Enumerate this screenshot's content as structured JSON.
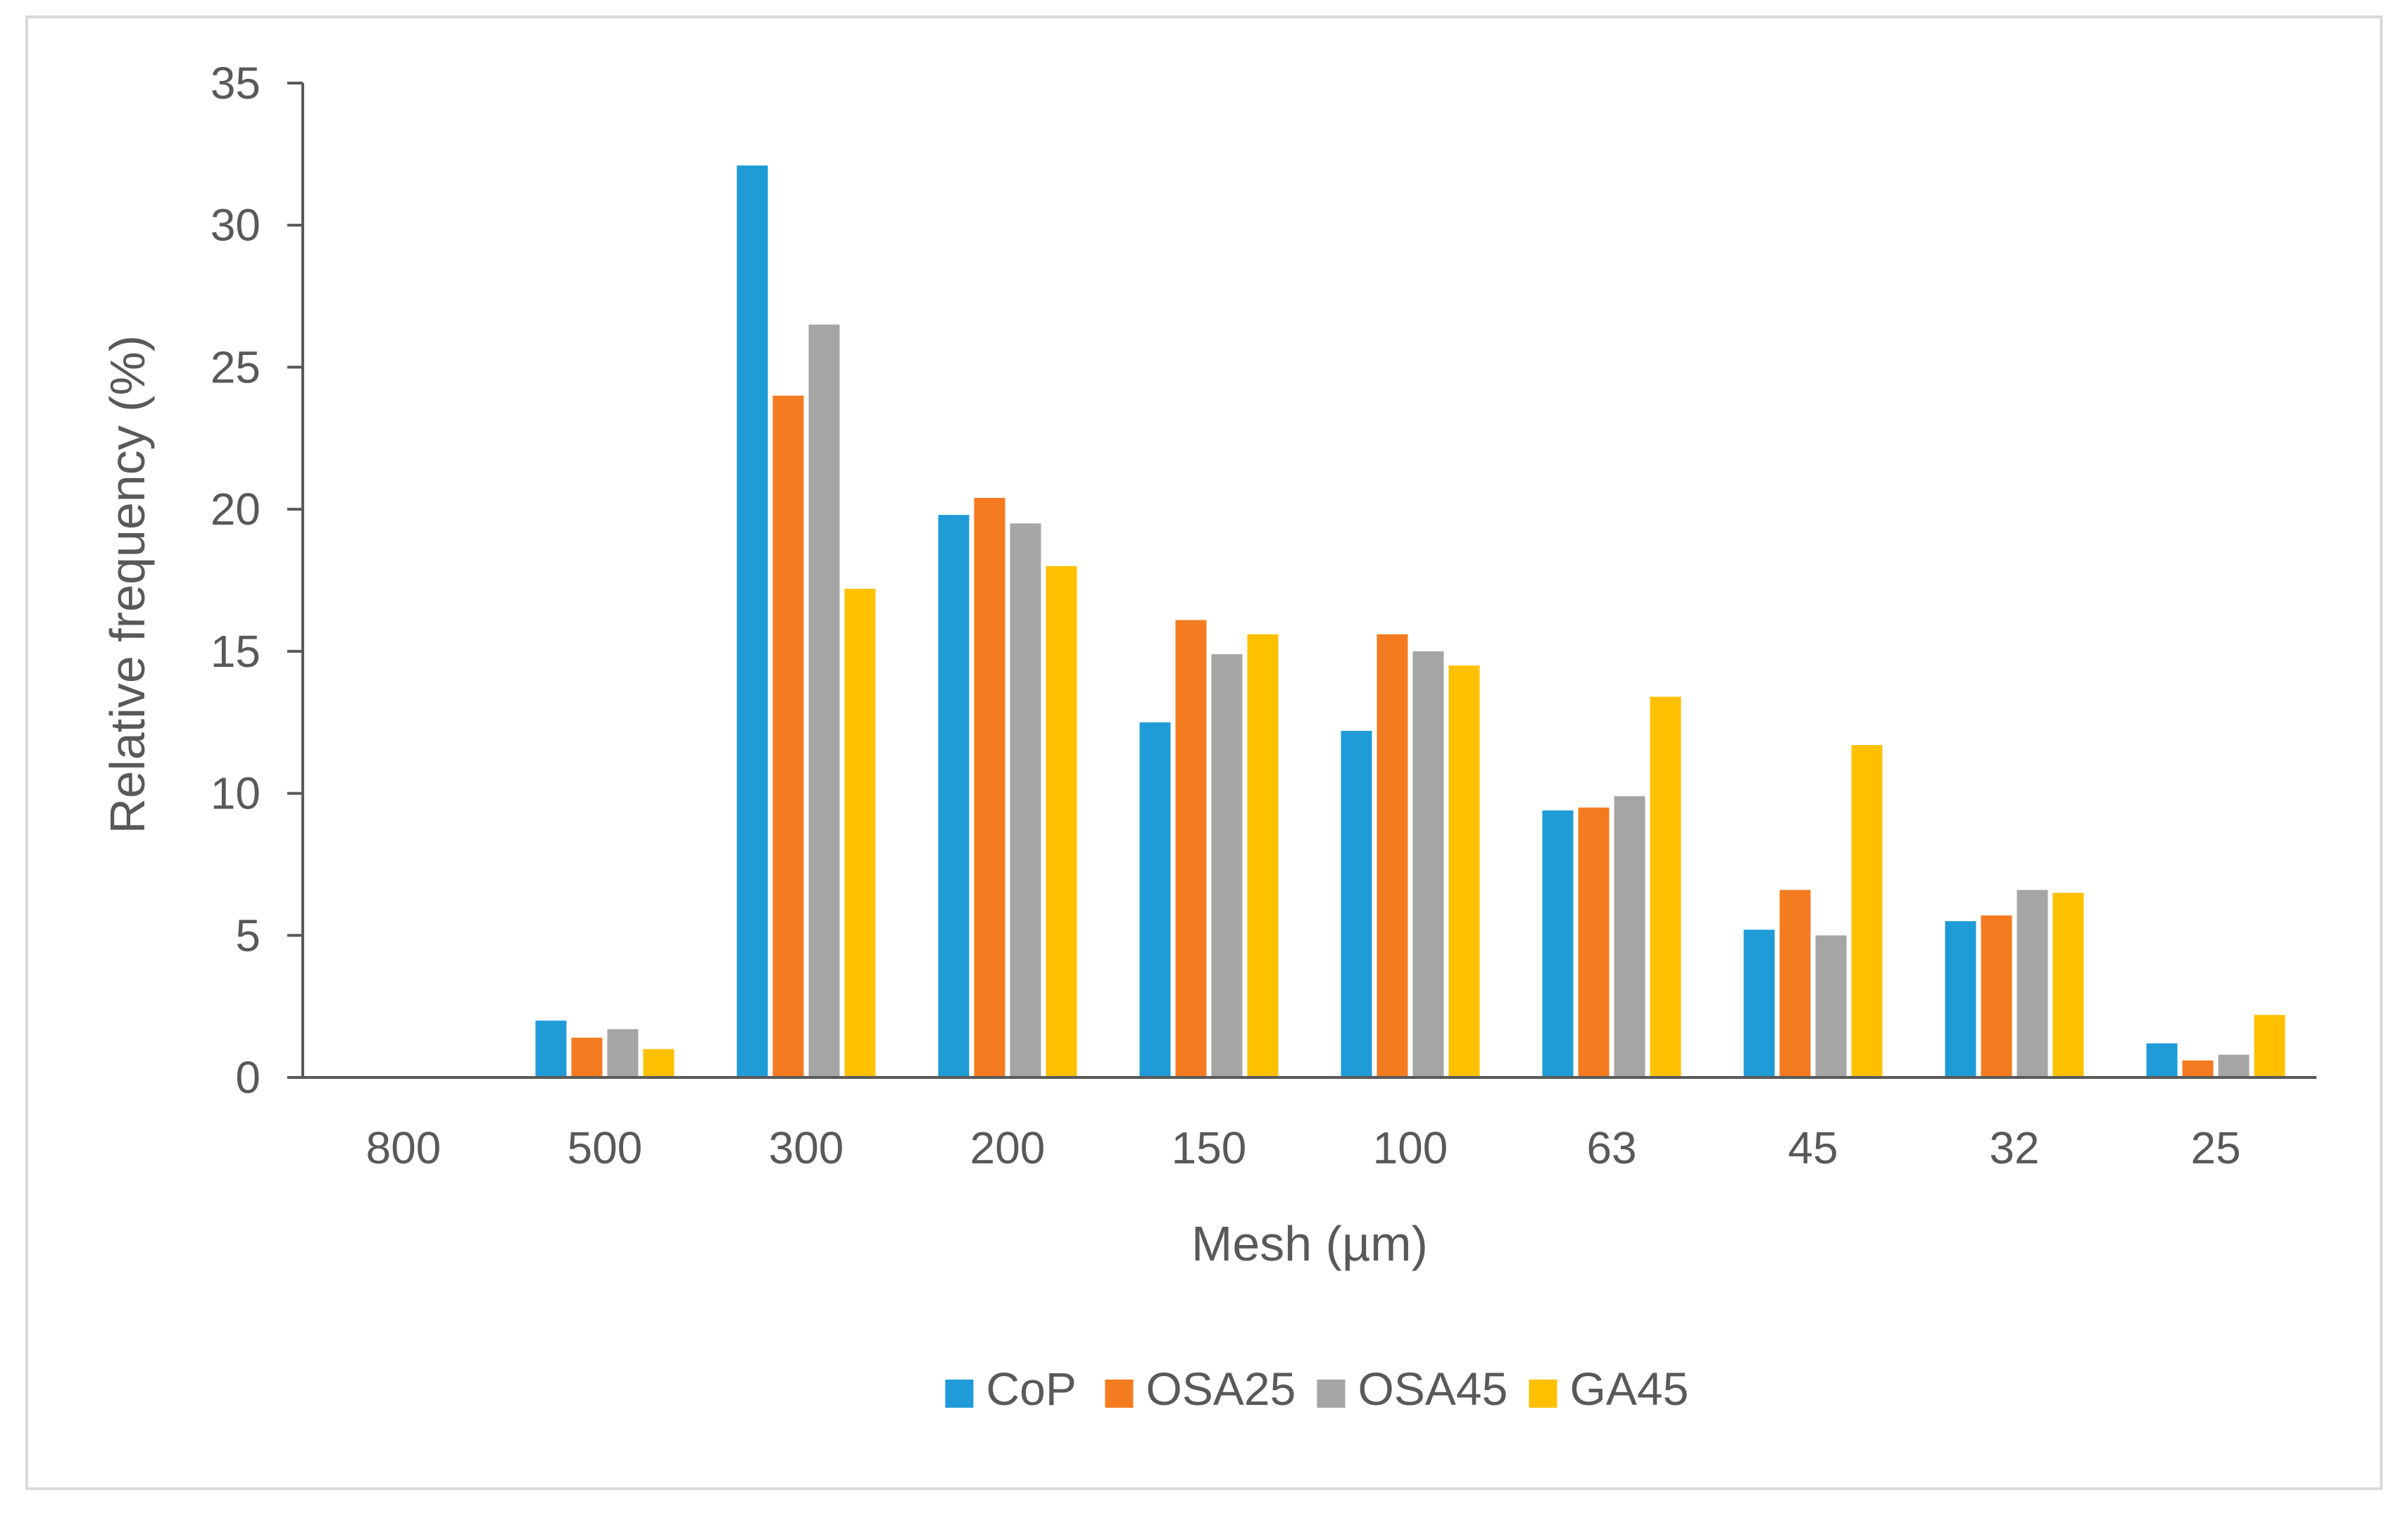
{
  "chart_data": {
    "type": "bar",
    "title": "",
    "xlabel": "Mesh (µm)",
    "ylabel": "Relative frequency (%)",
    "ylim": [
      0,
      35
    ],
    "yticks": [
      0,
      5,
      10,
      15,
      20,
      25,
      30,
      35
    ],
    "ytick_labels": [
      "0",
      "5",
      "10",
      "15",
      "20",
      "25",
      "30",
      "35"
    ],
    "grid": false,
    "legend_position": "bottom",
    "categories": [
      "800",
      "500",
      "300",
      "200",
      "150",
      "100",
      "63",
      "45",
      "32",
      "25"
    ],
    "series": [
      {
        "name": "CoP",
        "color": "#1f9bd7",
        "values": [
          0,
          2.0,
          32.1,
          19.8,
          12.5,
          12.2,
          9.4,
          5.2,
          5.5,
          1.2
        ]
      },
      {
        "name": "OSA25",
        "color": "#f47b20",
        "values": [
          0,
          1.4,
          24.0,
          20.4,
          16.1,
          15.6,
          9.5,
          6.6,
          5.7,
          0.6
        ]
      },
      {
        "name": "OSA45",
        "color": "#a5a5a5",
        "values": [
          0,
          1.7,
          26.5,
          19.5,
          14.9,
          15.0,
          9.9,
          5.0,
          6.6,
          0.8
        ]
      },
      {
        "name": "GA45",
        "color": "#ffc000",
        "values": [
          0,
          1.0,
          17.2,
          18.0,
          15.6,
          14.5,
          13.4,
          11.7,
          6.5,
          2.2
        ]
      }
    ]
  }
}
